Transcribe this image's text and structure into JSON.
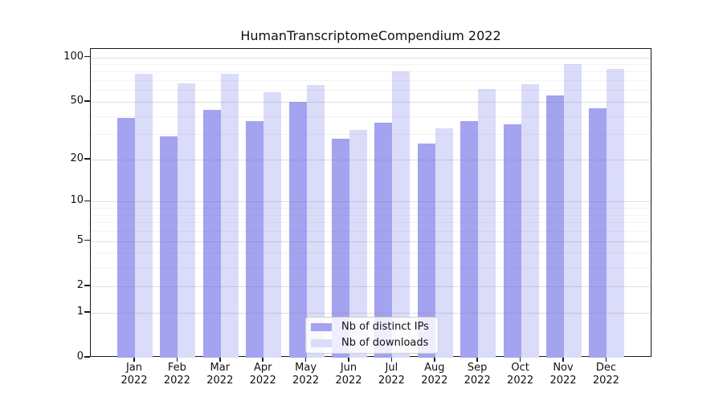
{
  "title": "HumanTranscriptomeCompendium 2022",
  "chart_data": {
    "type": "bar",
    "title": "HumanTranscriptomeCompendium 2022",
    "xlabel": "",
    "ylabel": "",
    "y_scale": "symlog_log10_of_1_plus_y",
    "ylim": [
      0,
      114
    ],
    "yticks": [
      100,
      50,
      20,
      10,
      5,
      2,
      1,
      0
    ],
    "minor_yticks": [
      3,
      4,
      6,
      7,
      8,
      9,
      30,
      40,
      60,
      70,
      80,
      90
    ],
    "grid": true,
    "legend_position": "lower center",
    "months": [
      "Jan",
      "Feb",
      "Mar",
      "Apr",
      "May",
      "Jun",
      "Jul",
      "Aug",
      "Sep",
      "Oct",
      "Nov",
      "Dec"
    ],
    "year": "2022",
    "series": [
      {
        "name": "Nb of distinct IPs",
        "color": "#a3a3f0",
        "values": [
          39,
          29,
          44,
          37,
          50,
          28,
          36,
          26,
          37,
          35,
          55,
          45
        ]
      },
      {
        "name": "Nb of downloads",
        "color": "#dbdbfa",
        "values": [
          77,
          67,
          77,
          58,
          65,
          32,
          80,
          33,
          61,
          66,
          90,
          84
        ]
      }
    ]
  },
  "colors": {
    "distinct_ips_bar": "#a3a3f0",
    "downloads_bar": "#dbdbfa",
    "axis": "#1a1a1a",
    "major_grid": "#d9d9d9",
    "minor_grid": "#efefef",
    "legend_border": "#cfcfcf"
  }
}
